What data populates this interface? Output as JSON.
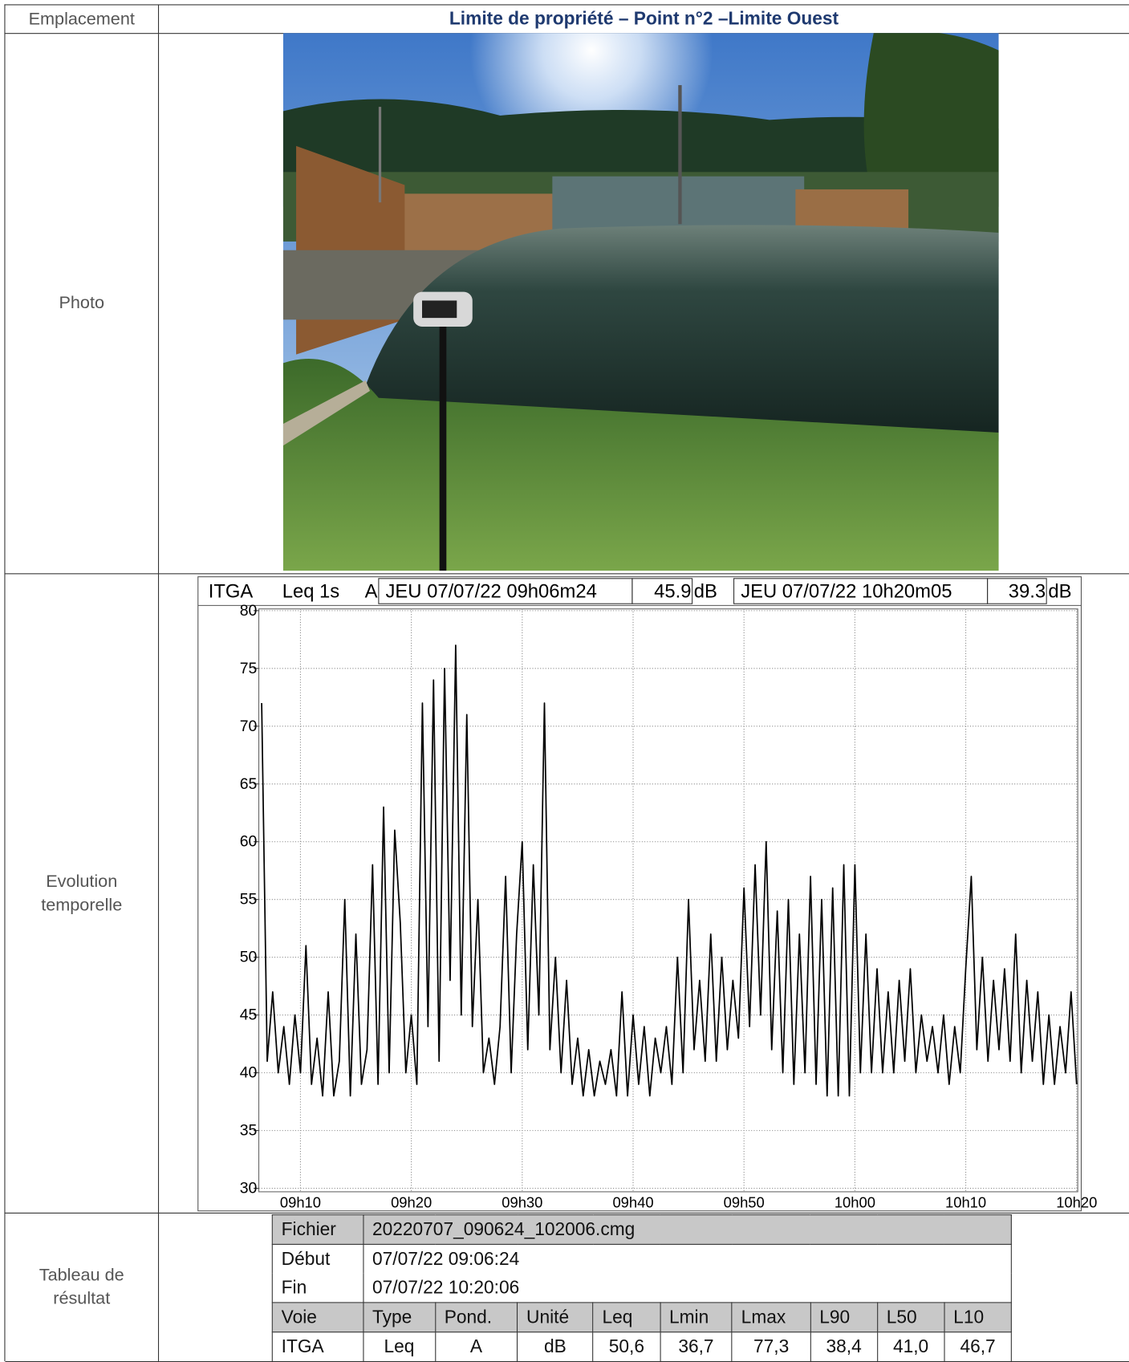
{
  "header": {
    "label": "Emplacement",
    "title": "Limite de propriété – Point n°2 –Limite Ouest"
  },
  "photo": {
    "label": "Photo"
  },
  "evolution": {
    "label": "Evolution temporelle",
    "channel": "ITGA",
    "index": "Leq 1s",
    "weighting": "A",
    "start": "JEU 07/07/22 09h06m24",
    "start_value": 45.9,
    "unit": "dB",
    "end": "JEU 07/07/22 10h20m05",
    "end_value": 39.3
  },
  "chart_data": {
    "type": "line",
    "color": "#000000",
    "grid": true,
    "xlim": [
      6.4,
      80.1
    ],
    "xticks": [
      {
        "value": 10,
        "label": "09h10"
      },
      {
        "value": 20,
        "label": "09h20"
      },
      {
        "value": 30,
        "label": "09h30"
      },
      {
        "value": 40,
        "label": "09h40"
      },
      {
        "value": 50,
        "label": "09h50"
      },
      {
        "value": 60,
        "label": "10h00"
      },
      {
        "value": 70,
        "label": "10h10"
      },
      {
        "value": 80,
        "label": "10h20"
      }
    ],
    "ylim": [
      30,
      80
    ],
    "yticks": [
      30,
      35,
      40,
      45,
      50,
      55,
      60,
      65,
      70,
      75,
      80
    ],
    "x": [
      6.5,
      7,
      7.5,
      8,
      8.5,
      9,
      9.5,
      10,
      10.5,
      11,
      11.5,
      12,
      12.5,
      13,
      13.5,
      14,
      14.5,
      15,
      15.5,
      16,
      16.5,
      17,
      17.5,
      18,
      18.5,
      19,
      19.5,
      20,
      20.5,
      21,
      21.5,
      22,
      22.5,
      23,
      23.5,
      24,
      24.5,
      25,
      25.5,
      26,
      26.5,
      27,
      27.5,
      28,
      28.5,
      29,
      29.5,
      30,
      30.5,
      31,
      31.5,
      32,
      32.5,
      33,
      33.5,
      34,
      34.5,
      35,
      35.5,
      36,
      36.5,
      37,
      37.5,
      38,
      38.5,
      39,
      39.5,
      40,
      40.5,
      41,
      41.5,
      42,
      42.5,
      43,
      43.5,
      44,
      44.5,
      45,
      45.5,
      46,
      46.5,
      47,
      47.5,
      48,
      48.5,
      49,
      49.5,
      50,
      50.5,
      51,
      51.5,
      52,
      52.5,
      53,
      53.5,
      54,
      54.5,
      55,
      55.5,
      56,
      56.5,
      57,
      57.5,
      58,
      58.5,
      59,
      59.5,
      60,
      60.5,
      61,
      61.5,
      62,
      62.5,
      63,
      63.5,
      64,
      64.5,
      65,
      65.5,
      66,
      66.5,
      67,
      67.5,
      68,
      68.5,
      69,
      69.5,
      70,
      70.5,
      71,
      71.5,
      72,
      72.5,
      73,
      73.5,
      74,
      74.5,
      75,
      75.5,
      76,
      76.5,
      77,
      77.5,
      78,
      78.5,
      79,
      79.5,
      80
    ],
    "values": [
      72,
      41,
      47,
      40,
      44,
      39,
      45,
      40,
      51,
      39,
      43,
      38,
      47,
      38,
      41,
      55,
      38,
      52,
      39,
      42,
      58,
      39,
      63,
      40,
      61,
      53,
      40,
      45,
      39,
      72,
      44,
      74,
      41,
      75,
      48,
      77,
      45,
      71,
      44,
      55,
      40,
      43,
      39,
      44,
      57,
      40,
      52,
      60,
      42,
      58,
      45,
      72,
      42,
      50,
      40,
      48,
      39,
      43,
      38,
      42,
      38,
      41,
      39,
      42,
      38,
      47,
      38,
      45,
      39,
      44,
      38,
      43,
      40,
      44,
      39,
      50,
      40,
      55,
      42,
      48,
      41,
      52,
      41,
      50,
      42,
      48,
      43,
      56,
      44,
      58,
      45,
      60,
      42,
      54,
      40,
      55,
      39,
      52,
      40,
      57,
      39,
      55,
      38,
      56,
      38,
      58,
      38,
      58,
      40,
      52,
      40,
      49,
      40,
      47,
      40,
      48,
      41,
      49,
      40,
      45,
      41,
      44,
      40,
      45,
      39,
      44,
      40,
      49,
      57,
      42,
      50,
      41,
      48,
      42,
      49,
      41,
      52,
      40,
      48,
      41,
      47,
      39,
      45,
      39,
      44,
      40,
      47,
      39
    ]
  },
  "results": {
    "label": "Tableau de résultat",
    "file_label": "Fichier",
    "file": "20220707_090624_102006.cmg",
    "start_label": "Début",
    "start": "07/07/22 09:06:24",
    "end_label": "Fin",
    "end": "07/07/22 10:20:06",
    "columns": [
      "Voie",
      "Type",
      "Pond.",
      "Unité",
      "Leq",
      "Lmin",
      "Lmax",
      "L90",
      "L50",
      "L10"
    ],
    "rows": [
      [
        "ITGA",
        "Leq",
        "A",
        "dB",
        "50,6",
        "36,7",
        "77,3",
        "38,4",
        "41,0",
        "46,7"
      ]
    ]
  }
}
